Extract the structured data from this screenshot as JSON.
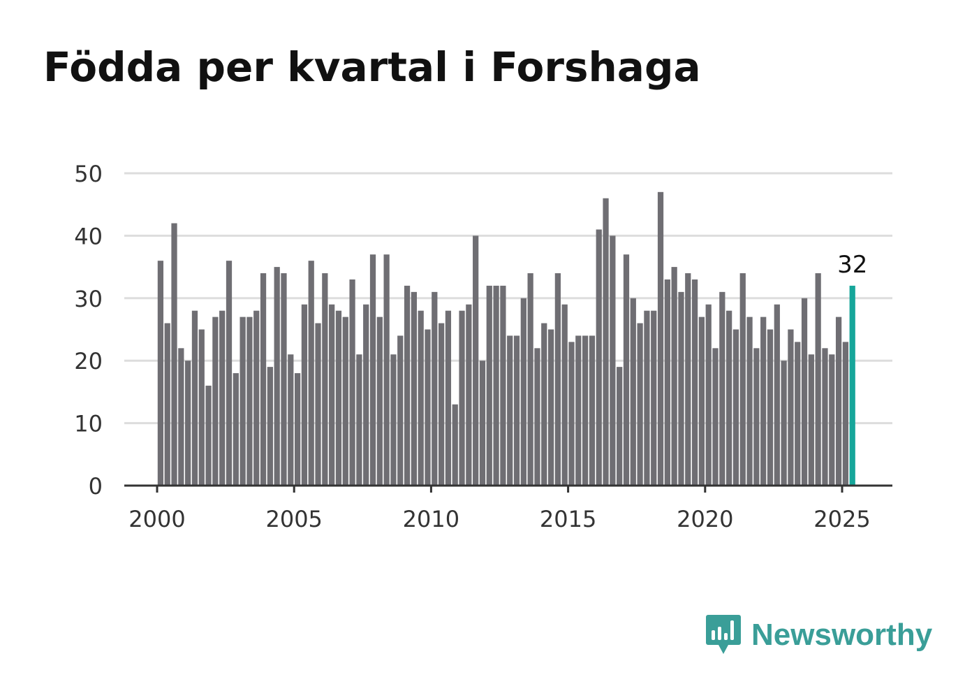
{
  "chart_data": {
    "type": "bar",
    "title": "Födda per kvartal i Forshaga",
    "xlabel": "",
    "ylabel": "",
    "ylim": [
      0,
      50
    ],
    "yticks": [
      0,
      10,
      20,
      30,
      40,
      50
    ],
    "xticks": [
      "2000",
      "2005",
      "2010",
      "2015",
      "2020",
      "2025"
    ],
    "grid": true,
    "legend": "none",
    "start_year": 2000,
    "quarters_per_year": 4,
    "values": [
      36,
      26,
      42,
      22,
      20,
      28,
      25,
      16,
      27,
      28,
      36,
      18,
      27,
      27,
      28,
      34,
      19,
      35,
      34,
      21,
      18,
      29,
      36,
      26,
      34,
      29,
      28,
      27,
      33,
      21,
      29,
      37,
      27,
      37,
      21,
      24,
      32,
      31,
      28,
      25,
      31,
      26,
      28,
      13,
      28,
      29,
      40,
      20,
      32,
      32,
      32,
      24,
      24,
      30,
      34,
      22,
      26,
      25,
      34,
      29,
      23,
      24,
      24,
      24,
      41,
      46,
      40,
      19,
      37,
      30,
      26,
      28,
      28,
      47,
      33,
      35,
      31,
      34,
      33,
      27,
      29,
      22,
      31,
      28,
      25,
      34,
      27,
      22,
      27,
      25,
      29,
      20,
      25,
      23,
      30,
      21,
      34,
      22,
      21,
      27,
      23,
      32
    ],
    "highlight_label": "32",
    "colors": {
      "bar": "#6f6e73",
      "highlight": "#16a69a",
      "grid": "#dddddd",
      "axis": "#333333"
    }
  },
  "brand": {
    "name": "Newsworthy",
    "icon": "newsworthy-logo-icon",
    "color": "#3a9e98"
  }
}
